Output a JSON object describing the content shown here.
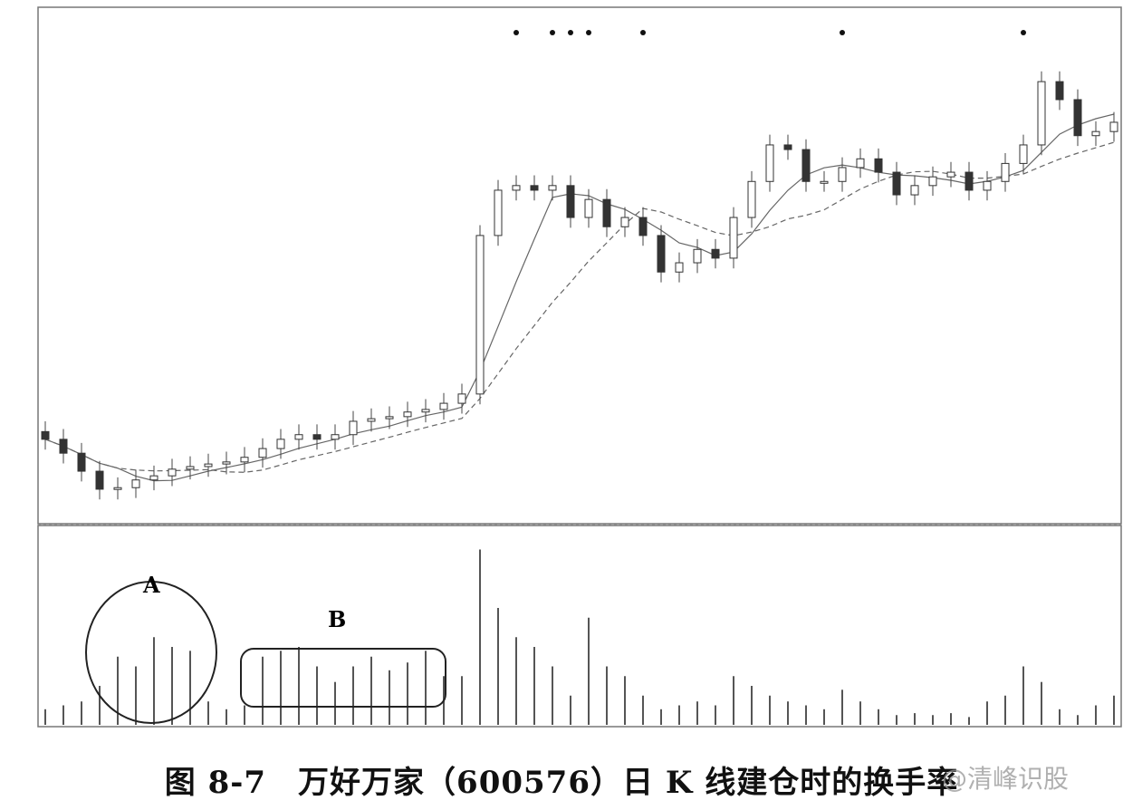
{
  "chart_data": [
    {
      "type": "candlestick",
      "panel": "price",
      "title": "",
      "xlabel": "",
      "ylabel": "",
      "ylim": [
        0,
        100
      ],
      "grid": false,
      "close": [
        16.4,
        13.7,
        10.2,
        6.7,
        7.0,
        8.5,
        9.3,
        10.6,
        11.1,
        11.6,
        12.0,
        12.9,
        14.6,
        16.4,
        17.3,
        16.4,
        17.3,
        19.9,
        20.4,
        20.8,
        21.7,
        22.2,
        23.4,
        25.2,
        56.0,
        64.8,
        65.7,
        64.8,
        65.7,
        59.5,
        63.0,
        57.7,
        59.5,
        56.0,
        48.9,
        50.7,
        53.3,
        51.6,
        59.5,
        66.5,
        73.6,
        72.7,
        66.5,
        66.5,
        69.2,
        70.9,
        68.3,
        63.9,
        65.7,
        67.4,
        68.3,
        64.8,
        66.5,
        70.0,
        73.6,
        85.9,
        82.4,
        75.4,
        76.2,
        78.0
      ],
      "marker_bars": [
        26,
        28,
        29,
        30,
        33,
        44,
        54
      ]
    },
    {
      "type": "bar",
      "panel": "turnover",
      "ylim": [
        0,
        100
      ],
      "values": [
        8,
        10,
        12,
        20,
        35,
        30,
        45,
        40,
        38,
        12,
        8,
        10,
        35,
        38,
        40,
        30,
        22,
        30,
        35,
        28,
        32,
        38,
        25,
        25,
        90,
        60,
        45,
        40,
        30,
        15,
        55,
        30,
        25,
        15,
        8,
        10,
        12,
        10,
        25,
        20,
        15,
        12,
        10,
        8,
        18,
        12,
        8,
        5,
        6,
        5,
        6,
        4,
        12,
        15,
        30,
        22,
        8,
        5,
        10,
        15
      ]
    }
  ],
  "annotations": {
    "a_label": "A",
    "b_label": "B"
  },
  "caption": "图 8-7　万好万家（600576）日 K 线建仓时的换手率",
  "watermark": "@清峰识股"
}
